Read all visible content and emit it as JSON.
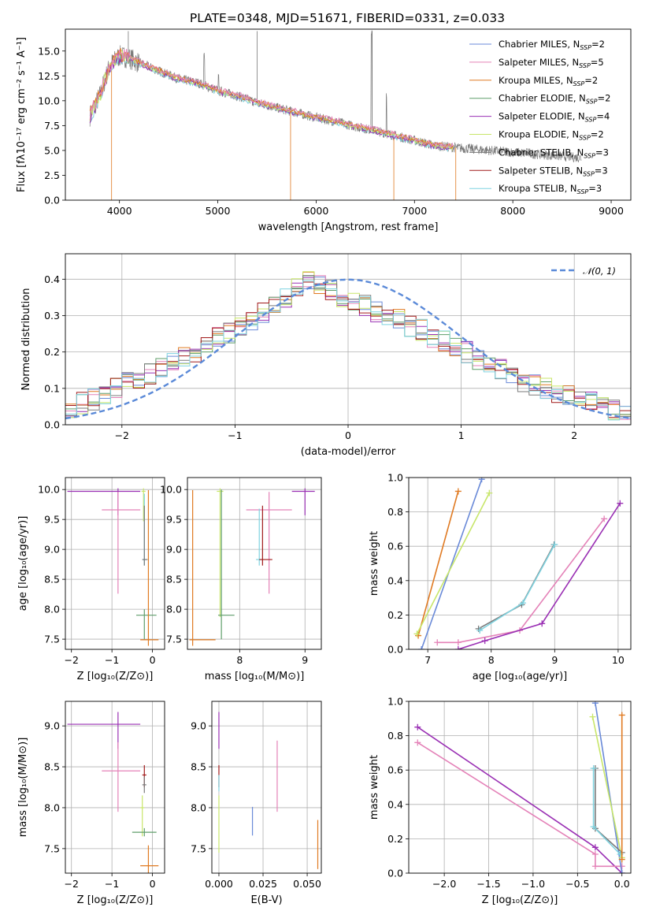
{
  "figure_title": "PLATE=0348, MJD=51671, FIBERID=0331, z=0.033",
  "colors": {
    "chabrier_miles": "#6a8ad8",
    "salpeter_miles": "#e482b8",
    "kroupa_miles": "#e07a22",
    "chabrier_elodie": "#5f9e6a",
    "salpeter_elodie": "#9a30b4",
    "kroupa_elodie": "#c8e66a",
    "chabrier_stelib": "#7a7a7a",
    "salpeter_stelib": "#a11a1a",
    "kroupa_stelib": "#7fd3e0"
  },
  "chart_data": [
    {
      "id": "spectrum",
      "type": "line",
      "title": "PLATE=0348, MJD=51671, FIBERID=0331, z=0.033",
      "xlabel": "wavelength [Angstrom, rest frame]",
      "ylabel": "Flux [fλ10⁻¹⁷ erg cm⁻² s⁻¹ A⁻¹]",
      "xlim": [
        3450,
        9200
      ],
      "ylim": [
        0,
        17.2
      ],
      "xticks": [
        4000,
        5000,
        6000,
        7000,
        8000,
        9000
      ],
      "yticks": [
        0.0,
        2.5,
        5.0,
        7.5,
        10.0,
        12.5,
        15.0
      ],
      "yticklabels": [
        "0.0",
        "2.5",
        "5.0",
        "7.5",
        "10.0",
        "12.5",
        "15.0"
      ],
      "legend_position": "top-right",
      "series": [
        {
          "name": "Chabrier MILES, N",
          "sub": "SSP",
          "eq": "=2",
          "key": "chabrier_miles"
        },
        {
          "name": "Salpeter MILES, N",
          "sub": "SSP",
          "eq": "=5",
          "key": "salpeter_miles"
        },
        {
          "name": "Kroupa MILES, N",
          "sub": "SSP",
          "eq": "=2",
          "key": "kroupa_miles"
        },
        {
          "name": "Chabrier ELODIE, N",
          "sub": "SSP",
          "eq": "=2",
          "key": "chabrier_elodie"
        },
        {
          "name": "Salpeter ELODIE, N",
          "sub": "SSP",
          "eq": "=4",
          "key": "salpeter_elodie"
        },
        {
          "name": "Kroupa ELODIE, N",
          "sub": "SSP",
          "eq": "=2",
          "key": "kroupa_elodie"
        },
        {
          "name": "Chabrier STELIB, N",
          "sub": "SSP",
          "eq": "=3",
          "key": "chabrier_stelib"
        },
        {
          "name": "Salpeter STELIB, N",
          "sub": "SSP",
          "eq": "=3",
          "key": "salpeter_stelib"
        },
        {
          "name": "Kroupa STELIB, N",
          "sub": "SSP",
          "eq": "=3",
          "key": "kroupa_stelib"
        }
      ],
      "model_continuum": {
        "x": [
          3700,
          3800,
          3900,
          4000,
          4100,
          4200,
          4400,
          4600,
          4800,
          5000,
          5200,
          5400,
          5600,
          5800,
          6000,
          6200,
          6400,
          6600,
          6800,
          7000,
          7200,
          7400
        ],
        "y": [
          8.5,
          10.5,
          13.5,
          14.5,
          14.3,
          13.8,
          13.0,
          12.2,
          11.8,
          11.0,
          10.5,
          9.8,
          9.3,
          8.8,
          8.3,
          7.9,
          7.4,
          7.0,
          6.5,
          6.0,
          5.5,
          5.3
        ]
      },
      "observed_extension": {
        "x": [
          7400,
          8000,
          8700
        ],
        "y": [
          5.3,
          4.6,
          4.2
        ]
      }
    },
    {
      "id": "residuals",
      "type": "histogram",
      "xlabel": "(data-model)/error",
      "ylabel": "Normed distribution",
      "xlim": [
        -2.5,
        2.5
      ],
      "ylim": [
        0,
        0.47
      ],
      "xticks": [
        -2,
        -1,
        0,
        1,
        2
      ],
      "yticks": [
        0.0,
        0.1,
        0.2,
        0.3,
        0.4
      ],
      "yticklabels": [
        "0.0",
        "0.1",
        "0.2",
        "0.3",
        "0.4"
      ],
      "legend": "𝒩(0, 1)",
      "legend_position": "top-right",
      "reference_curve": "standard normal N(0,1)",
      "bin_width": 0.1,
      "bin_start": -2.5,
      "base_values": [
        0.05,
        0.06,
        0.07,
        0.08,
        0.1,
        0.12,
        0.13,
        0.14,
        0.16,
        0.17,
        0.19,
        0.2,
        0.22,
        0.24,
        0.25,
        0.27,
        0.29,
        0.31,
        0.33,
        0.35,
        0.38,
        0.4,
        0.39,
        0.37,
        0.35,
        0.34,
        0.33,
        0.31,
        0.3,
        0.29,
        0.27,
        0.26,
        0.24,
        0.23,
        0.21,
        0.2,
        0.18,
        0.17,
        0.15,
        0.14,
        0.12,
        0.11,
        0.1,
        0.09,
        0.08,
        0.07,
        0.06,
        0.05,
        0.04,
        0.03
      ]
    },
    {
      "id": "age_vs_Z",
      "type": "errorbar",
      "xlabel": "Z [log₁₀(Z/Z⊙)]",
      "ylabel": "age  [log₁₀(age/yr)]",
      "xlim": [
        -2.15,
        0.3
      ],
      "ylim": [
        7.33,
        10.2
      ],
      "xticks": [
        -2,
        -1,
        0
      ],
      "yticks": [
        7.5,
        8.0,
        8.5,
        9.0,
        9.5,
        10.0
      ],
      "yticklabels": [
        "7.5",
        "8.0",
        "8.5",
        "9.0",
        "9.5",
        "10.0"
      ],
      "points": [
        {
          "x": -0.85,
          "y": 9.97,
          "xerr": [
            1.25,
            0.55
          ],
          "yerr": [
            0.4,
            0.05
          ],
          "key": "salpeter_elodie"
        },
        {
          "x": -0.85,
          "y": 9.66,
          "xerr": [
            0.4,
            0.55
          ],
          "yerr": [
            1.4,
            0.3
          ],
          "key": "salpeter_miles"
        },
        {
          "x": -0.22,
          "y": 9.97,
          "xerr": [
            0.05,
            0.05
          ],
          "yerr": [
            0.5,
            0.05
          ],
          "key": "kroupa_elodie"
        },
        {
          "x": -0.2,
          "y": 8.83,
          "xerr": [
            0.05,
            0.05
          ],
          "yerr": [
            0.1,
            1.1
          ],
          "key": "kroupa_stelib"
        },
        {
          "x": -0.2,
          "y": 8.83,
          "xerr": [
            0.05,
            0.08
          ],
          "yerr": [
            0.1,
            0.9
          ],
          "key": "chabrier_stelib"
        },
        {
          "x": -0.2,
          "y": 7.9,
          "xerr": [
            0.2,
            0.3
          ],
          "yerr": [
            0.4,
            0.1
          ],
          "key": "chabrier_elodie"
        },
        {
          "x": -0.1,
          "y": 7.49,
          "xerr": [
            0.2,
            0.25
          ],
          "yerr": [
            0.1,
            2.5
          ],
          "key": "kroupa_miles"
        }
      ]
    },
    {
      "id": "age_vs_mass",
      "type": "errorbar",
      "xlabel": "mass [log₁₀(M/M⊙)]",
      "ylabel": "",
      "xlim": [
        7.2,
        9.25
      ],
      "ylim": [
        7.33,
        10.2
      ],
      "xticks": [
        8,
        9
      ],
      "yticks": [
        7.5,
        8.0,
        8.5,
        9.0,
        9.5,
        10.0
      ],
      "yticklabels": [
        "7.5",
        "8.0",
        "8.5",
        "9.0",
        "9.5",
        "10.0"
      ],
      "points": [
        {
          "x": 9.0,
          "y": 9.97,
          "xerr": [
            0.2,
            0.15
          ],
          "yerr": [
            0.4,
            0.05
          ],
          "key": "salpeter_elodie"
        },
        {
          "x": 8.45,
          "y": 9.66,
          "xerr": [
            0.35,
            0.35
          ],
          "yerr": [
            1.4,
            0.3
          ],
          "key": "salpeter_miles"
        },
        {
          "x": 7.7,
          "y": 9.97,
          "xerr": [
            0.05,
            0.05
          ],
          "yerr": [
            2.1,
            0.05
          ],
          "key": "kroupa_elodie"
        },
        {
          "x": 8.3,
          "y": 8.83,
          "xerr": [
            0.05,
            0.05
          ],
          "yerr": [
            0.1,
            0.85
          ],
          "key": "kroupa_stelib"
        },
        {
          "x": 8.35,
          "y": 8.83,
          "xerr": [
            0.05,
            0.15
          ],
          "yerr": [
            0.1,
            0.9
          ],
          "key": "salpeter_stelib"
        },
        {
          "x": 7.72,
          "y": 7.9,
          "xerr": [
            0.05,
            0.2
          ],
          "yerr": [
            0.4,
            2.1
          ],
          "key": "chabrier_elodie"
        },
        {
          "x": 7.28,
          "y": 7.49,
          "xerr": [
            0.05,
            0.35
          ],
          "yerr": [
            0.1,
            2.5
          ],
          "key": "kroupa_miles"
        }
      ]
    },
    {
      "id": "weight_vs_age",
      "type": "line",
      "xlabel": "age  [log₁₀(age/yr)]",
      "ylabel": "mass weight",
      "xlim": [
        6.7,
        10.2
      ],
      "ylim": [
        0,
        1.0
      ],
      "xticks": [
        7,
        8,
        9,
        10
      ],
      "yticks": [
        0.0,
        0.2,
        0.4,
        0.6,
        0.8,
        1.0
      ],
      "yticklabels": [
        "0.0",
        "0.2",
        "0.4",
        "0.6",
        "0.8",
        "1.0"
      ],
      "series": [
        {
          "key": "kroupa_miles",
          "x": [
            6.85,
            7.48
          ],
          "y": [
            0.08,
            0.92
          ]
        },
        {
          "key": "chabrier_miles",
          "x": [
            6.9,
            7.85
          ],
          "y": [
            0.0,
            0.99
          ]
        },
        {
          "key": "kroupa_elodie",
          "x": [
            6.83,
            7.97
          ],
          "y": [
            0.09,
            0.91
          ]
        },
        {
          "key": "chabrier_stelib",
          "x": [
            7.8,
            8.48,
            8.99
          ],
          "y": [
            0.12,
            0.26,
            0.61
          ]
        },
        {
          "key": "kroupa_stelib",
          "x": [
            7.82,
            8.5,
            9.0
          ],
          "y": [
            0.11,
            0.27,
            0.61
          ]
        },
        {
          "key": "salpeter_miles",
          "x": [
            7.15,
            7.48,
            8.45,
            9.78
          ],
          "y": [
            0.04,
            0.04,
            0.11,
            0.76
          ]
        },
        {
          "key": "salpeter_elodie",
          "x": [
            7.48,
            7.9,
            8.8,
            10.03
          ],
          "y": [
            0.0,
            0.05,
            0.15,
            0.85
          ]
        }
      ]
    },
    {
      "id": "mass_vs_Z",
      "type": "errorbar",
      "xlabel": "Z [log₁₀(Z/Z⊙)]",
      "ylabel": "mass [log₁₀(M/M⊙)]",
      "xlim": [
        -2.15,
        0.3
      ],
      "ylim": [
        7.2,
        9.3
      ],
      "xticks": [
        -2,
        -1,
        0
      ],
      "yticks": [
        7.5,
        8.0,
        8.5,
        9.0
      ],
      "yticklabels": [
        "7.5",
        "8.0",
        "8.5",
        "9.0"
      ],
      "points": [
        {
          "x": -0.85,
          "y": 9.02,
          "xerr": [
            1.25,
            0.55
          ],
          "yerr": [
            0.3,
            0.15
          ],
          "key": "salpeter_elodie"
        },
        {
          "x": -0.85,
          "y": 8.45,
          "xerr": [
            0.4,
            0.55
          ],
          "yerr": [
            0.5,
            0.35
          ],
          "key": "salpeter_miles"
        },
        {
          "x": -0.2,
          "y": 8.4,
          "xerr": [
            0.05,
            0.05
          ],
          "yerr": [
            0.15,
            0.12
          ],
          "key": "salpeter_stelib"
        },
        {
          "x": -0.2,
          "y": 8.28,
          "xerr": [
            0.05,
            0.05
          ],
          "yerr": [
            0.1,
            0.1
          ],
          "key": "chabrier_stelib"
        },
        {
          "x": -0.25,
          "y": 8.0,
          "xerr": [
            0.05,
            0.05
          ],
          "yerr": [
            0.35,
            0.15
          ],
          "key": "kroupa_elodie"
        },
        {
          "x": -0.2,
          "y": 7.7,
          "xerr": [
            0.3,
            0.3
          ],
          "yerr": [
            0.05,
            0.05
          ],
          "key": "chabrier_elodie"
        },
        {
          "x": -0.1,
          "y": 7.29,
          "xerr": [
            0.2,
            0.25
          ],
          "yerr": [
            0.15,
            0.25
          ],
          "key": "kroupa_miles"
        }
      ]
    },
    {
      "id": "mass_vs_EBV",
      "type": "errorbar",
      "xlabel": "E(B-V)",
      "ylabel": "",
      "xlim": [
        -0.004,
        0.058
      ],
      "ylim": [
        7.2,
        9.3
      ],
      "xticks": [
        0.0,
        0.025,
        0.05
      ],
      "xticklabels": [
        "0.000",
        "0.025",
        "0.050"
      ],
      "yticks": [
        7.5,
        8.0,
        8.5,
        9.0
      ],
      "yticklabels": [
        "7.5",
        "8.0",
        "8.5",
        "9.0"
      ],
      "points": [
        {
          "x": 0.0,
          "y": 9.02,
          "xerr": [
            0,
            0
          ],
          "yerr": [
            0.3,
            0.15
          ],
          "key": "salpeter_elodie"
        },
        {
          "x": 0.0,
          "y": 8.4,
          "xerr": [
            0,
            0
          ],
          "yerr": [
            0.15,
            0.12
          ],
          "key": "salpeter_stelib"
        },
        {
          "x": 0.0,
          "y": 8.3,
          "xerr": [
            0,
            0
          ],
          "yerr": [
            0.1,
            0.1
          ],
          "key": "kroupa_stelib"
        },
        {
          "x": 0.0,
          "y": 7.8,
          "xerr": [
            0,
            0
          ],
          "yerr": [
            0.35,
            0.35
          ],
          "key": "kroupa_elodie"
        },
        {
          "x": 0.019,
          "y": 7.83,
          "xerr": [
            0,
            0
          ],
          "yerr": [
            0.17,
            0.18
          ],
          "key": "chabrier_miles"
        },
        {
          "x": 0.033,
          "y": 8.37,
          "xerr": [
            0,
            0
          ],
          "yerr": [
            0.42,
            0.45
          ],
          "key": "salpeter_miles"
        },
        {
          "x": 0.056,
          "y": 7.55,
          "xerr": [
            0,
            0
          ],
          "yerr": [
            0.3,
            0.3
          ],
          "key": "kroupa_miles"
        }
      ]
    },
    {
      "id": "weight_vs_Z",
      "type": "line",
      "xlabel": "Z [log₁₀(Z/Z⊙)]",
      "ylabel": "mass weight",
      "xlim": [
        -2.4,
        0.1
      ],
      "ylim": [
        0,
        1.0
      ],
      "xticks": [
        -2.0,
        -1.5,
        -1.0,
        -0.5,
        0.0
      ],
      "xticklabels": [
        "−2.0",
        "−1.5",
        "−1.0",
        "−0.5",
        "0.0"
      ],
      "yticks": [
        0.0,
        0.2,
        0.4,
        0.6,
        0.8,
        1.0
      ],
      "yticklabels": [
        "0.0",
        "0.2",
        "0.4",
        "0.6",
        "0.8",
        "1.0"
      ],
      "series": [
        {
          "key": "salpeter_elodie",
          "x": [
            -2.3,
            -0.3,
            0.0
          ],
          "y": [
            0.85,
            0.15,
            0.0
          ]
        },
        {
          "key": "salpeter_miles",
          "x": [
            -2.3,
            -0.3,
            -0.3,
            0.0
          ],
          "y": [
            0.76,
            0.11,
            0.04,
            0.04
          ]
        },
        {
          "key": "chabrier_miles",
          "x": [
            -0.3,
            0.0
          ],
          "y": [
            0.99,
            0.0
          ]
        },
        {
          "key": "kroupa_elodie",
          "x": [
            -0.33,
            0.0
          ],
          "y": [
            0.91,
            0.09
          ]
        },
        {
          "key": "chabrier_stelib",
          "x": [
            -0.3,
            -0.3,
            0.0
          ],
          "y": [
            0.61,
            0.26,
            0.12
          ]
        },
        {
          "key": "kroupa_stelib",
          "x": [
            -0.32,
            -0.32,
            -0.02
          ],
          "y": [
            0.61,
            0.27,
            0.11
          ]
        },
        {
          "key": "kroupa_miles",
          "x": [
            0.0,
            0.0
          ],
          "y": [
            0.92,
            0.08
          ]
        }
      ]
    }
  ]
}
